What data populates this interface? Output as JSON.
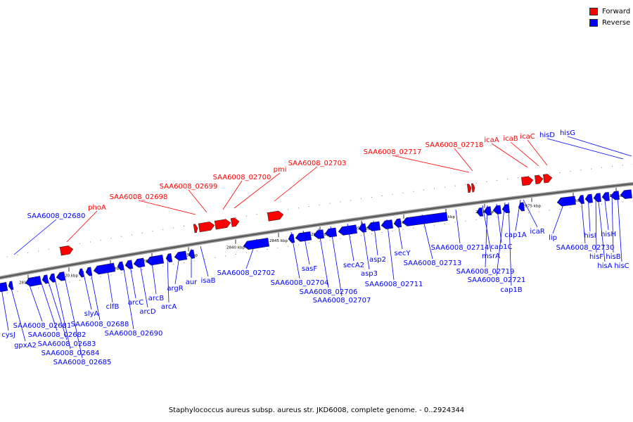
{
  "legend": {
    "forward_label": "Forward",
    "reverse_label": "Reverse",
    "forward_color": "#ff0000",
    "reverse_color": "#0000ff"
  },
  "caption": "Staphylococcus aureus subsp. aureus str. JKD6008, complete genome. - 0..2924344",
  "axis_unit": "kbp",
  "ticks_kbp": [
    2815,
    2820,
    2825,
    2830,
    2835,
    2840,
    2845,
    2850,
    2855,
    2860,
    2865,
    2870,
    2875,
    2880,
    2885
  ],
  "forward_genes": [
    {
      "name": "SAA6008_02680",
      "label": false
    },
    {
      "name": "phoA",
      "label": true
    },
    {
      "name": "SAA6008_02698",
      "label": true
    },
    {
      "name": "SAA6008_02699",
      "label": true
    },
    {
      "name": "SAA6008_02700",
      "label": true
    },
    {
      "name": "pmi",
      "label": true
    },
    {
      "name": "SAA6008_02703",
      "label": true
    },
    {
      "name": "SAA6008_02717",
      "label": true
    },
    {
      "name": "SAA6008_02718",
      "label": true
    },
    {
      "name": "icaA",
      "label": true
    },
    {
      "name": "icaB",
      "label": true
    },
    {
      "name": "icaC",
      "label": true
    }
  ],
  "reverse_labels": [
    "SAA6008_02680",
    "cysJ",
    "gpxA2",
    "SAA6008_02681",
    "SAA6008_02682",
    "SAA6008_02683",
    "SAA6008_02684",
    "SAA6008_02685",
    "slyA",
    "SAA6008_02688",
    "clfB",
    "SAA6008_02690",
    "arcC",
    "arcD",
    "arcB",
    "arcA",
    "argR",
    "aur",
    "isaB",
    "SAA6008_02702",
    "SAA6008_02704",
    "sasF",
    "SAA6008_02706",
    "SAA6008_02707",
    "secA2",
    "asp3",
    "asp2",
    "SAA6008_02711",
    "secY",
    "SAA6008_02713",
    "SAA6008_02714",
    "msrA",
    "SAA6008_02719",
    "cap1C",
    "SAA6008_02721",
    "cap1B",
    "cap1A",
    "icaR",
    "lip",
    "SAA6008_02730",
    "hisI",
    "hisF",
    "hisH",
    "hisA",
    "hisB",
    "hisC",
    "hisD",
    "hisG"
  ]
}
